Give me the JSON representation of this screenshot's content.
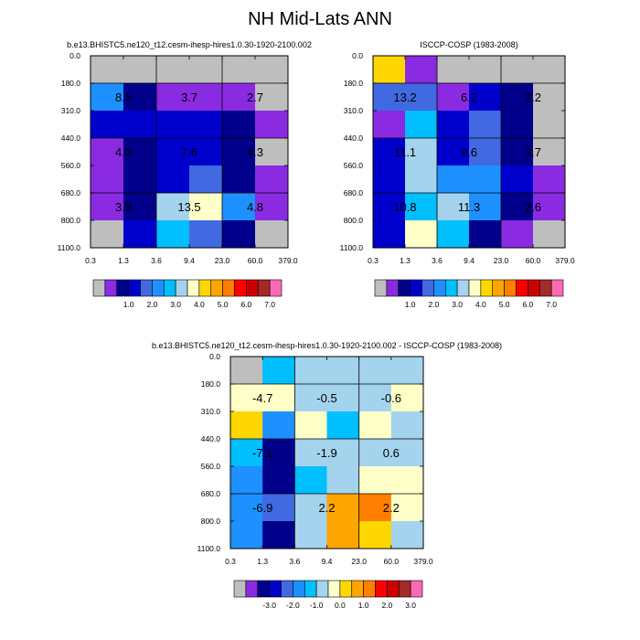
{
  "figure": {
    "title": "NH Mid-Lats ANN"
  },
  "colors": {
    "missing": "#bebebe",
    "grid": "#000000",
    "palette_abs": [
      "#bebebe",
      "#8a2be2",
      "#00008b",
      "#0000cd",
      "#4169e1",
      "#1e90ff",
      "#00bfff",
      "#a4d3ee",
      "#ffffc8",
      "#ffd700",
      "#ffa500",
      "#ff7f00",
      "#ff0000",
      "#cd0000",
      "#a52a2a",
      "#ff69b4"
    ],
    "palette_diff": [
      "#bebebe",
      "#8a2be2",
      "#00008b",
      "#0000cd",
      "#4169e1",
      "#1e90ff",
      "#00bfff",
      "#a4d3ee",
      "#ffffc8",
      "#ffd700",
      "#ffa500",
      "#ff7f00",
      "#ff0000",
      "#cd0000",
      "#a52a2a",
      "#ff69b4"
    ]
  },
  "chart_data": [
    {
      "type": "heatmap",
      "title": "b.e13.BHISTC5.ne120_t12.cesm-ihesp-hires1.0.30-1920-2100.002",
      "x_ticks": [
        "0.3",
        "1.3",
        "3.6",
        "9.4",
        "23.0",
        "60.0",
        "379.0"
      ],
      "y_ticks": [
        "0.0",
        "180.0",
        "310.0",
        "440.0",
        "560.0",
        "680.0",
        "800.0",
        "1100.0"
      ],
      "cells": [
        [
          0,
          0,
          0,
          0,
          0,
          0
        ],
        [
          5,
          2,
          1,
          1,
          1,
          0
        ],
        [
          3,
          3,
          3,
          3,
          2,
          1
        ],
        [
          1,
          2,
          3,
          3,
          2,
          0
        ],
        [
          1,
          2,
          3,
          4,
          2,
          1
        ],
        [
          1,
          2,
          7,
          8,
          5,
          1
        ],
        [
          0,
          3,
          6,
          4,
          2,
          0
        ]
      ],
      "block_labels": [
        [
          "8.5",
          "3.7",
          "2.7"
        ],
        [
          "4.0",
          "7.6",
          "4.3"
        ],
        [
          "3.9",
          "13.5",
          "4.8"
        ]
      ],
      "colorbar": {
        "labels": [
          "1.0",
          "2.0",
          "3.0",
          "4.0",
          "5.0",
          "6.0",
          "7.0"
        ],
        "palette": "abs"
      }
    },
    {
      "type": "heatmap",
      "title": "ISCCP-COSP (1983-2008)",
      "x_ticks": [
        "0.3",
        "1.3",
        "3.6",
        "9.4",
        "23.0",
        "60.0",
        "379.0"
      ],
      "y_ticks": [
        "0.0",
        "180.0",
        "310.0",
        "440.0",
        "560.0",
        "680.0",
        "800.0",
        "1100.0"
      ],
      "cells": [
        [
          9,
          1,
          0,
          0,
          0,
          0
        ],
        [
          4,
          4,
          1,
          3,
          2,
          0
        ],
        [
          1,
          6,
          3,
          4,
          2,
          0
        ],
        [
          3,
          7,
          3,
          4,
          2,
          0
        ],
        [
          3,
          7,
          5,
          5,
          3,
          1
        ],
        [
          3,
          6,
          7,
          5,
          2,
          1
        ],
        [
          3,
          8,
          6,
          2,
          1,
          0
        ]
      ],
      "block_labels": [
        [
          "13.2",
          "6.2",
          "3.2"
        ],
        [
          "11.1",
          "9.6",
          "3.7"
        ],
        [
          "10.8",
          "11.3",
          "2.6"
        ]
      ],
      "colorbar": {
        "labels": [
          "1.0",
          "2.0",
          "3.0",
          "4.0",
          "5.0",
          "6.0",
          "7.0"
        ],
        "palette": "abs"
      }
    },
    {
      "type": "heatmap",
      "title": "b.e13.BHISTC5.ne120_t12.cesm-ihesp-hires1.0.30-1920-2100.002 - ISCCP-COSP (1983-2008)",
      "x_ticks": [
        "0.3",
        "1.3",
        "3.6",
        "9.4",
        "23.0",
        "60.0",
        "379.0"
      ],
      "y_ticks": [
        "0.0",
        "180.0",
        "310.0",
        "440.0",
        "560.0",
        "680.0",
        "800.0",
        "1100.0"
      ],
      "cells": [
        [
          0,
          6,
          7,
          7,
          7,
          7
        ],
        [
          8,
          8,
          7,
          7,
          7,
          8
        ],
        [
          9,
          5,
          8,
          6,
          8,
          7
        ],
        [
          6,
          2,
          7,
          7,
          7,
          7
        ],
        [
          5,
          2,
          6,
          7,
          8,
          8
        ],
        [
          5,
          4,
          7,
          10,
          11,
          8
        ],
        [
          5,
          2,
          7,
          10,
          9,
          7
        ]
      ],
      "block_labels": [
        [
          "-4.7",
          "-0.5",
          "-0.6"
        ],
        [
          "-7.1",
          "-1.9",
          "0.6"
        ],
        [
          "-6.9",
          "2.2",
          "2.2"
        ]
      ],
      "colorbar": {
        "labels": [
          "-3.0",
          "-2.0",
          "-1.0",
          "0.0",
          "1.0",
          "2.0",
          "3.0"
        ],
        "palette": "diff"
      }
    }
  ]
}
